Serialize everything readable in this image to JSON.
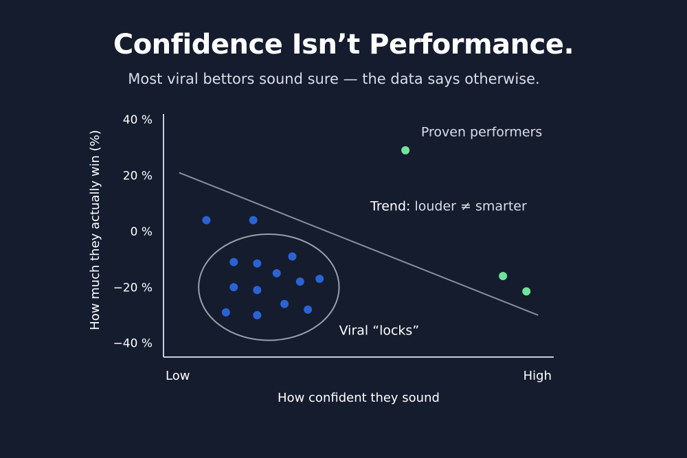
{
  "colors": {
    "background": "#151c2e",
    "text": "#ffffff",
    "muted_text": "#d9dee8",
    "axis": "#c9ced8",
    "trend_line": "#8a909c",
    "cluster_ellipse": "#9aa0aa",
    "viral_points": "#2a63d4",
    "proven_points": "#6fe39a"
  },
  "title": "Confidence Isn’t Performance.",
  "subtitle": "Most viral bettors sound sure — the data says otherwise.",
  "chart_data": {
    "type": "scatter",
    "xlabel": "How confident they sound",
    "ylabel": "How much they actually win (%)",
    "x_tick_labels": [
      "Low",
      "High"
    ],
    "xlim": [
      0,
      100
    ],
    "ylim": [
      -45,
      42
    ],
    "y_ticks": [
      40,
      20,
      0,
      -20,
      -40
    ],
    "y_tick_labels": [
      "40 %",
      "20 %",
      "0 %",
      "−20 %",
      "−40 %"
    ],
    "grid": false,
    "series": [
      {
        "group": "viral",
        "color_key": "viral_points",
        "points": [
          {
            "x": 11,
            "y": 4
          },
          {
            "x": 23,
            "y": 4
          },
          {
            "x": 18,
            "y": -11
          },
          {
            "x": 24,
            "y": -11.5
          },
          {
            "x": 33,
            "y": -9
          },
          {
            "x": 29,
            "y": -15
          },
          {
            "x": 35,
            "y": -18
          },
          {
            "x": 40,
            "y": -17
          },
          {
            "x": 18,
            "y": -20
          },
          {
            "x": 24,
            "y": -21
          },
          {
            "x": 31,
            "y": -26
          },
          {
            "x": 37,
            "y": -28
          },
          {
            "x": 16,
            "y": -29
          },
          {
            "x": 24,
            "y": -30
          }
        ]
      },
      {
        "group": "proven",
        "color_key": "proven_points",
        "points": [
          {
            "x": 62,
            "y": 29
          },
          {
            "x": 87,
            "y": -16
          },
          {
            "x": 93,
            "y": -21.5
          }
        ]
      }
    ],
    "trend_line": {
      "x1": 4,
      "y1": 21,
      "x2": 96,
      "y2": -30
    },
    "cluster": {
      "cx": 27,
      "cy": -20,
      "rx": 18,
      "ry": 19
    },
    "annotations": [
      {
        "id": "proven-performers",
        "text": "Proven performers",
        "x": 66,
        "y": 34
      },
      {
        "id": "trend-note",
        "text_strong": "Trend:",
        "text_rest": " louder ≠ smarter",
        "x": 53,
        "y": 7.5
      },
      {
        "id": "viral-locks",
        "text": "Viral “locks”",
        "x": 45,
        "y": -37
      }
    ]
  }
}
